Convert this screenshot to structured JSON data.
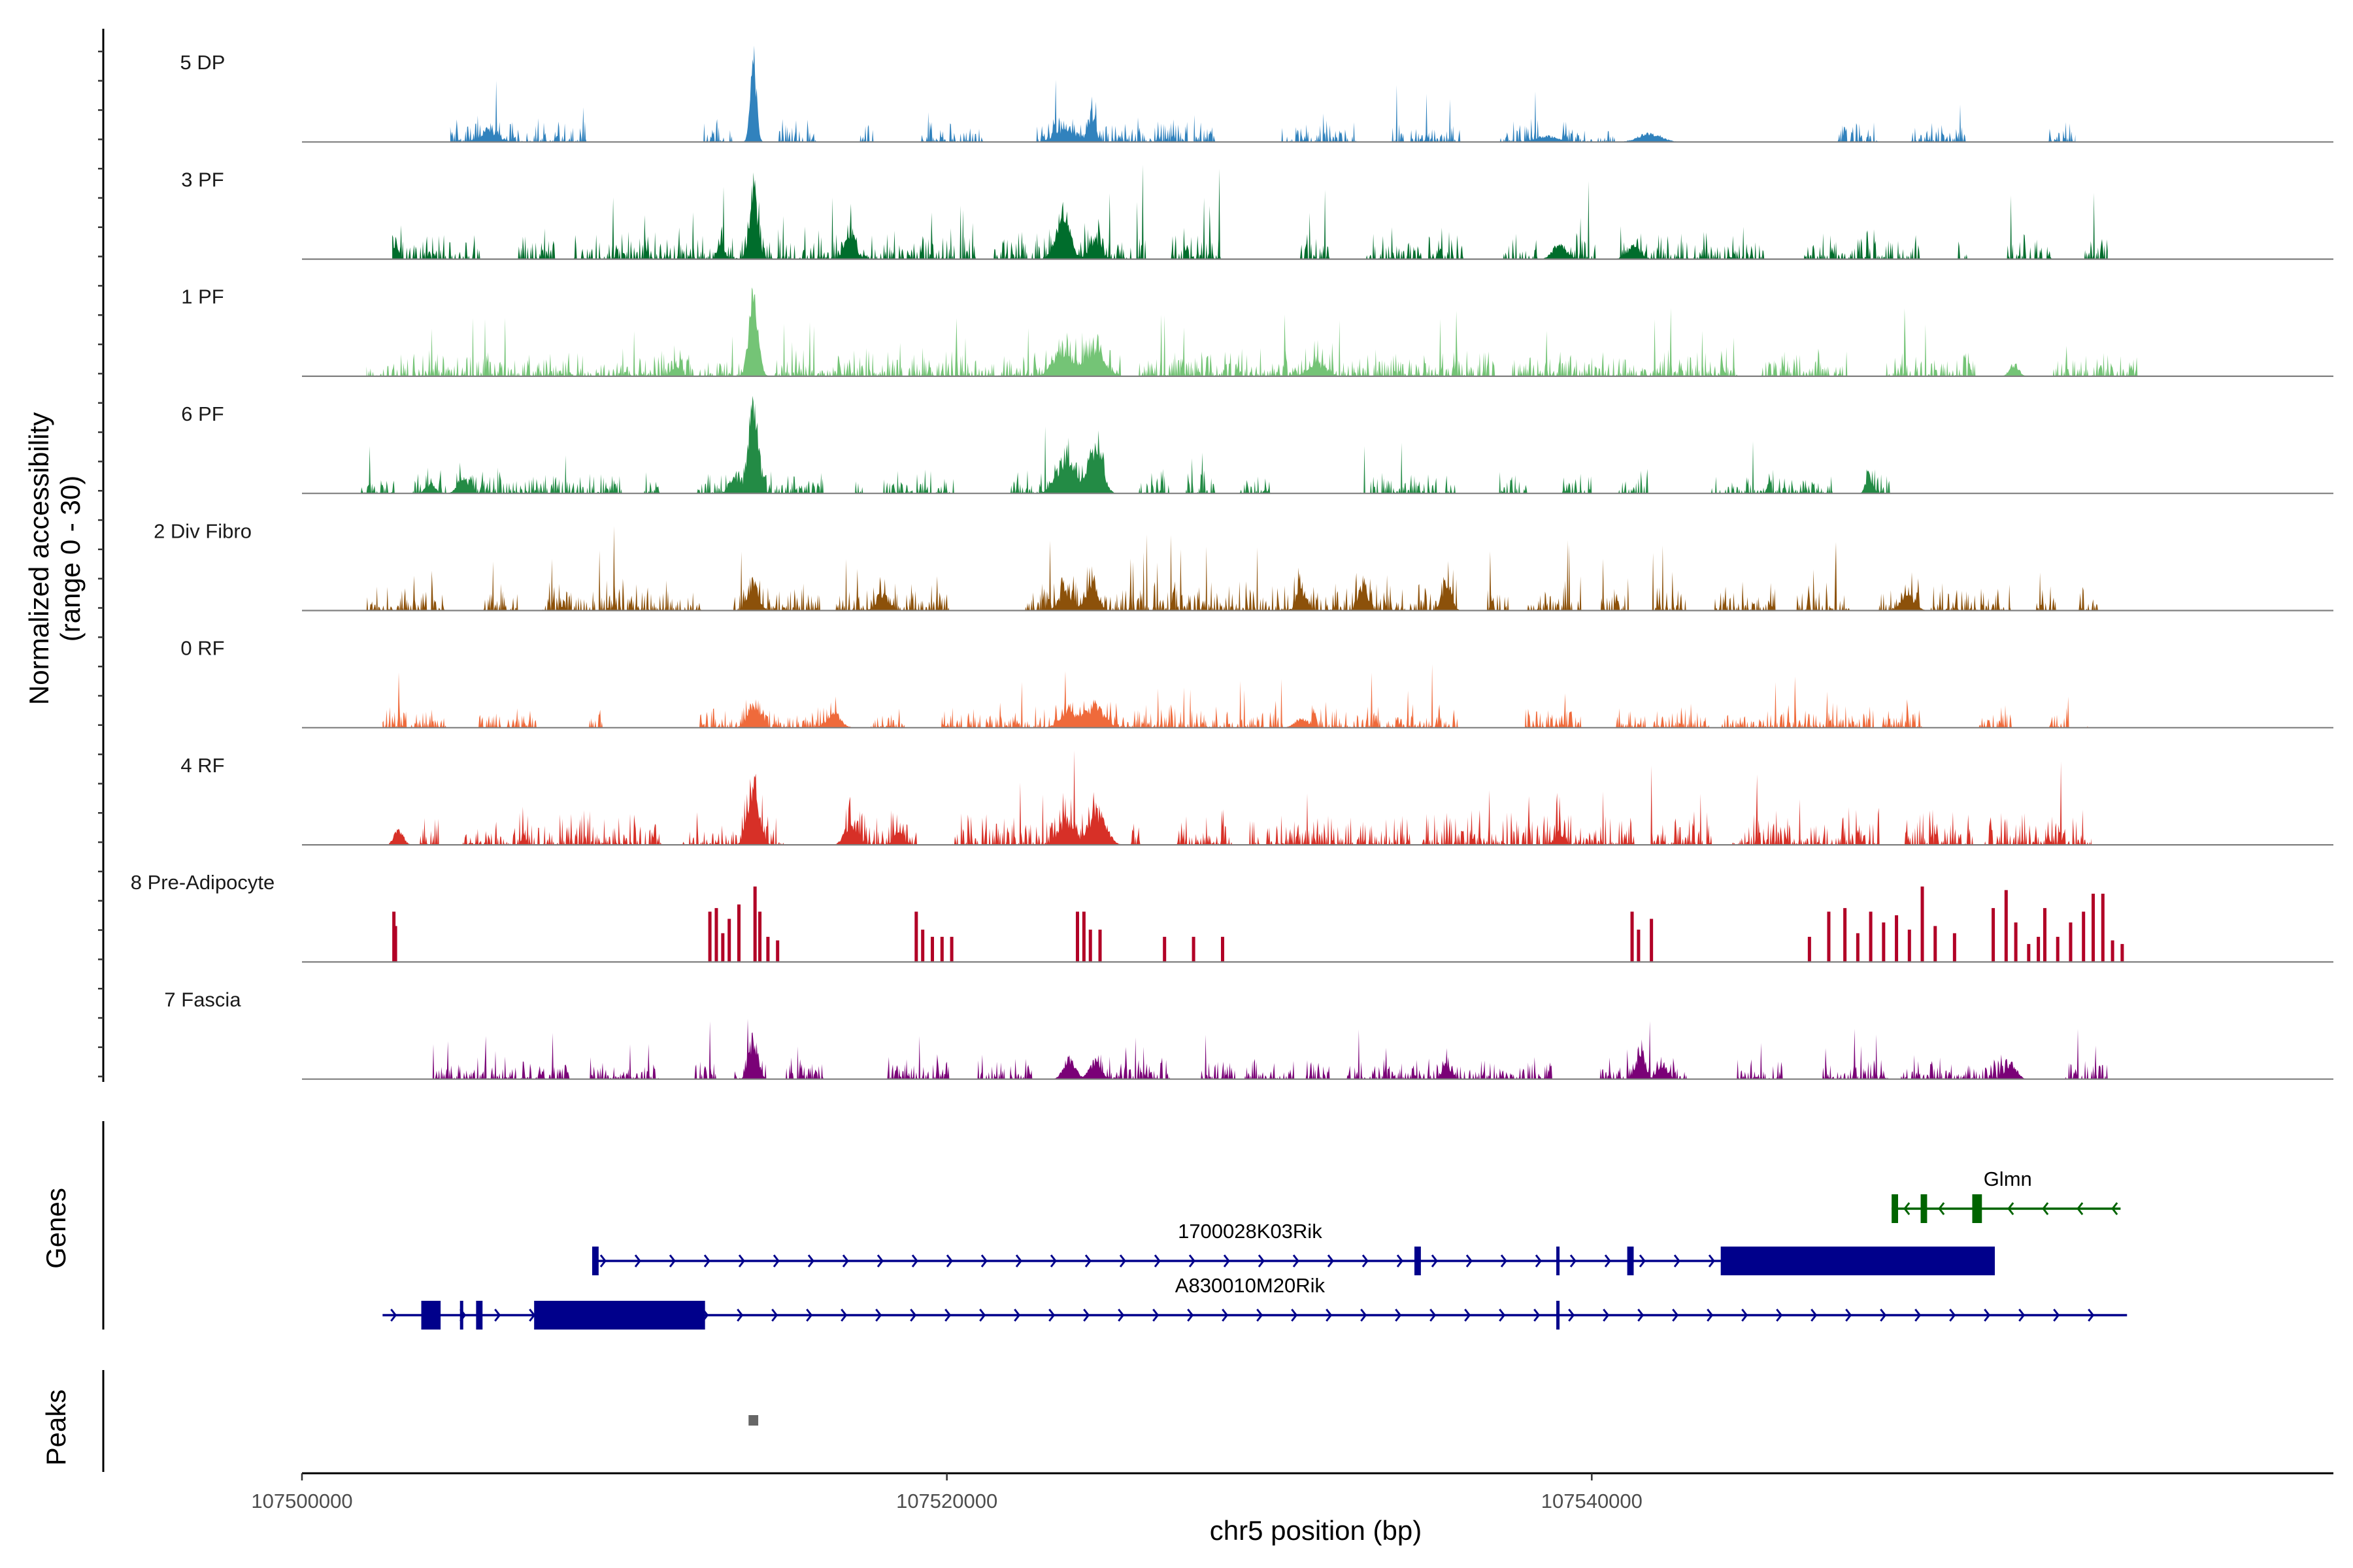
{
  "chart_data": {
    "type": "coverage",
    "chromosome": "chr5",
    "xlabel": "chr5 position (bp)",
    "ylabel_line1": "Normalized accessibility",
    "ylabel_line2": "(range 0 - 30)",
    "xlim": [
      107500000,
      107563000
    ],
    "ylim": [
      0,
      30
    ],
    "x_ticks": [
      107500000,
      107520000,
      107540000
    ],
    "x_tick_labels": [
      "107500000",
      "107520000",
      "107540000"
    ],
    "panel_labels": {
      "genes": "Genes",
      "peaks": "Peaks"
    },
    "tracks": [
      {
        "name": "5 DP",
        "color": "#3182bd",
        "start": 107504600,
        "end": 107555000,
        "noise": 0.06,
        "gaps": 0.55,
        "peaks": [
          [
            107514000,
            30,
            130
          ],
          [
            107524500,
            9,
            150
          ],
          [
            107523700,
            4,
            500
          ],
          [
            107505800,
            3.5,
            400
          ],
          [
            107541800,
            3,
            500
          ],
          [
            107538600,
            2,
            500
          ]
        ]
      },
      {
        "name": "3 PF",
        "color": "#006d2c",
        "start": 107502800,
        "end": 107556000,
        "noise": 0.08,
        "gaps": 0.3,
        "peaks": [
          [
            107514000,
            22,
            180
          ],
          [
            107523600,
            16,
            300
          ],
          [
            107524600,
            7,
            250
          ],
          [
            107517000,
            10,
            220
          ],
          [
            107502900,
            4,
            150
          ],
          [
            107513000,
            5,
            150
          ],
          [
            107539000,
            5,
            300
          ],
          [
            107541300,
            4,
            300
          ]
        ]
      },
      {
        "name": "1 PF",
        "color": "#74c476",
        "start": 107502000,
        "end": 107557000,
        "noise": 0.07,
        "gaps": 0.18,
        "peaks": [
          [
            107514000,
            28,
            200
          ],
          [
            107523600,
            9,
            400
          ],
          [
            107524600,
            10,
            400
          ],
          [
            107531500,
            4,
            400
          ],
          [
            107553100,
            4,
            200
          ],
          [
            107511600,
            3,
            200
          ]
        ]
      },
      {
        "name": "6 PF",
        "color": "#238b45",
        "start": 107501800,
        "end": 107553700,
        "noise": 0.06,
        "gaps": 0.55,
        "peaks": [
          [
            107514000,
            28,
            220
          ],
          [
            107523700,
            12,
            400
          ],
          [
            107524600,
            16,
            300
          ],
          [
            107505000,
            5,
            250
          ],
          [
            107513400,
            6,
            200
          ],
          [
            107548600,
            6,
            150
          ],
          [
            107504000,
            3,
            200
          ]
        ]
      },
      {
        "name": "2 Div Fibro",
        "color": "#8c510a",
        "start": 107502000,
        "end": 107556000,
        "noise": 0.08,
        "gaps": 0.2,
        "peaks": [
          [
            107514000,
            10,
            220
          ],
          [
            107524500,
            10,
            250
          ],
          [
            107523700,
            6,
            300
          ],
          [
            107518000,
            6,
            250
          ],
          [
            107532900,
            8,
            200
          ],
          [
            107535500,
            10,
            200
          ],
          [
            107531000,
            7,
            200
          ],
          [
            107549800,
            5,
            300
          ]
        ]
      },
      {
        "name": "0 RF",
        "color": "#ef6a3b",
        "start": 107502500,
        "end": 107555500,
        "noise": 0.06,
        "gaps": 0.25,
        "peaks": [
          [
            107514000,
            9,
            250
          ],
          [
            107524600,
            7,
            400
          ],
          [
            107523800,
            5,
            400
          ],
          [
            107516500,
            5,
            300
          ],
          [
            107531000,
            3,
            300
          ]
        ]
      },
      {
        "name": "4 RF",
        "color": "#d73027",
        "start": 107502700,
        "end": 107555500,
        "noise": 0.09,
        "gaps": 0.2,
        "peaks": [
          [
            107514000,
            17,
            250
          ],
          [
            107524700,
            11,
            350
          ],
          [
            107523700,
            8,
            350
          ],
          [
            107517000,
            7,
            250
          ],
          [
            107503000,
            5,
            200
          ],
          [
            107518500,
            4,
            200
          ],
          [
            107539000,
            4,
            200
          ]
        ]
      },
      {
        "name": "8 Pre-Adipocyte",
        "color": "#b10026",
        "start": 107502500,
        "end": 107556600,
        "noise": 0,
        "gaps": 0,
        "bars": [
          [
            107502800,
            14
          ],
          [
            107502850,
            10
          ],
          [
            107512600,
            14
          ],
          [
            107512800,
            15
          ],
          [
            107513000,
            8
          ],
          [
            107513200,
            12
          ],
          [
            107513500,
            16
          ],
          [
            107514000,
            21
          ],
          [
            107514150,
            14
          ],
          [
            107514400,
            7
          ],
          [
            107514700,
            6
          ],
          [
            107519000,
            14
          ],
          [
            107519200,
            9
          ],
          [
            107519500,
            7
          ],
          [
            107519800,
            7
          ],
          [
            107520100,
            7
          ],
          [
            107524000,
            14
          ],
          [
            107524200,
            14
          ],
          [
            107524400,
            9
          ],
          [
            107524700,
            9
          ],
          [
            107526700,
            7
          ],
          [
            107527600,
            7
          ],
          [
            107528500,
            7
          ],
          [
            107541200,
            14
          ],
          [
            107541400,
            9
          ],
          [
            107541800,
            12
          ],
          [
            107546700,
            7
          ],
          [
            107547300,
            14
          ],
          [
            107547800,
            15
          ],
          [
            107548200,
            8
          ],
          [
            107548600,
            14
          ],
          [
            107549000,
            11
          ],
          [
            107549400,
            13
          ],
          [
            107549800,
            9
          ],
          [
            107550200,
            21
          ],
          [
            107550600,
            10
          ],
          [
            107551200,
            8
          ],
          [
            107552400,
            15
          ],
          [
            107552800,
            20
          ],
          [
            107553100,
            11
          ],
          [
            107553500,
            5
          ],
          [
            107553800,
            7
          ],
          [
            107554000,
            15
          ],
          [
            107554400,
            7
          ],
          [
            107554800,
            11
          ],
          [
            107555200,
            14
          ],
          [
            107555500,
            19
          ],
          [
            107555800,
            19
          ],
          [
            107556100,
            6
          ],
          [
            107556400,
            5
          ]
        ]
      },
      {
        "name": "7 Fascia",
        "color": "#7a0177",
        "start": 107503600,
        "end": 107556000,
        "noise": 0.06,
        "gaps": 0.35,
        "peaks": [
          [
            107514000,
            12,
            200
          ],
          [
            107523800,
            7,
            250
          ],
          [
            107524600,
            6,
            250
          ],
          [
            107541500,
            9,
            200
          ],
          [
            107535500,
            5,
            200
          ],
          [
            107553000,
            5,
            250
          ],
          [
            107542200,
            4,
            200
          ]
        ]
      }
    ],
    "genes": [
      {
        "name": "Glmn",
        "color": "#006400",
        "strand": "-",
        "start": 107549300,
        "end": 107556400,
        "exons": [
          [
            107549300,
            107549500
          ],
          [
            107550200,
            107550400
          ],
          [
            107551800,
            107552100
          ]
        ],
        "row": 0
      },
      {
        "name": "1700028K03Rik",
        "color": "#00008b",
        "strand": "+",
        "start": 107509000,
        "end": 107552500,
        "exons": [
          [
            107509000,
            107509200
          ],
          [
            107534500,
            107534700
          ],
          [
            107538900,
            107539000
          ],
          [
            107541100,
            107541300
          ],
          [
            107544000,
            107552500
          ]
        ],
        "row": 1
      },
      {
        "name": "A830010M20Rik",
        "color": "#00008b",
        "strand": "+",
        "start": 107502500,
        "end": 107556600,
        "exons": [
          [
            107503700,
            107504300
          ],
          [
            107504900,
            107505000
          ],
          [
            107505400,
            107505600
          ],
          [
            107507200,
            107512500
          ],
          [
            107538900,
            107539000
          ]
        ],
        "row": 2
      }
    ],
    "peak_regions": [
      [
        107513850,
        107514150
      ]
    ]
  }
}
